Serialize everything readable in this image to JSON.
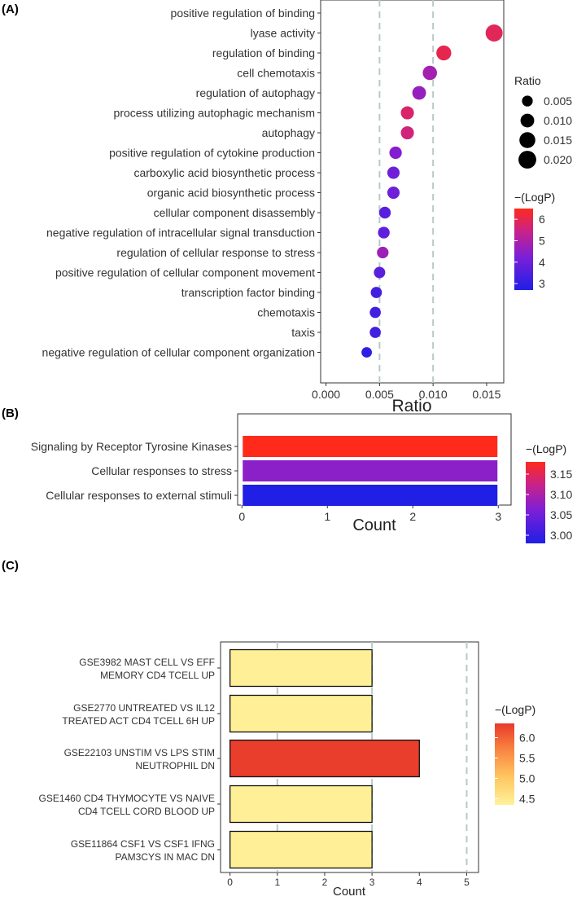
{
  "panels": {
    "a": {
      "tag": "(A)"
    },
    "b": {
      "tag": "(B)"
    },
    "c": {
      "tag": "(C)"
    }
  },
  "chart_data": [
    {
      "type": "scatter",
      "xlabel": "Ratio",
      "xlim": [
        -0.0005,
        0.0166
      ],
      "xticks": [
        "0.000",
        "0.005",
        "0.010",
        "0.015"
      ],
      "xtick_values": [
        0,
        0.005,
        0.01,
        0.015
      ],
      "reference_lines_x": [
        0.005,
        0.01
      ],
      "grid": false,
      "legend_position": "right",
      "size_legend": {
        "title": "Ratio",
        "labels": [
          "0.005",
          "0.010",
          "0.015",
          "0.020"
        ],
        "values": [
          0.005,
          0.01,
          0.015,
          0.02
        ]
      },
      "color_legend": {
        "title": "−(LogP)",
        "labels": [
          "6",
          "5",
          "4",
          "3"
        ],
        "values": [
          6,
          5,
          4,
          3
        ],
        "range": [
          2.7,
          6.5
        ],
        "colors": [
          "#1f1fe6",
          "#7b1fd8",
          "#c9228a",
          "#ff2a1a"
        ]
      },
      "categories": [
        "positive regulation of binding",
        "lyase activity",
        "regulation of binding",
        "cell chemotaxis",
        "regulation of autophagy",
        "process utilizing autophagic mechanism",
        "autophagy",
        "positive regulation of cytokine production",
        "carboxylic acid biosynthetic process",
        "organic acid biosynthetic process",
        "cellular component disassembly",
        "negative regulation of intracellular signal transduction",
        "regulation of cellular response to stress",
        "positive regulation of cellular component movement",
        "transcription factor binding",
        "chemotaxis",
        "taxis",
        "negative regulation of cellular component organization"
      ],
      "x": [
        null,
        0.0157,
        0.011,
        0.0097,
        0.0087,
        0.0076,
        0.0076,
        0.0065,
        0.0063,
        0.0063,
        0.0055,
        0.0054,
        0.0053,
        0.005,
        0.0047,
        0.0046,
        0.0046,
        0.0038
      ],
      "color_values": [
        null,
        5.8,
        5.9,
        4.6,
        4.4,
        5.6,
        5.4,
        4.1,
        3.8,
        3.8,
        3.5,
        3.6,
        4.5,
        3.5,
        3.2,
        3.2,
        3.2,
        2.9
      ]
    },
    {
      "type": "bar",
      "orientation": "horizontal",
      "xlabel": "Count",
      "xlim": [
        -0.05,
        3.15
      ],
      "xticks": [
        "0",
        "1",
        "2",
        "3"
      ],
      "grid": false,
      "legend_position": "right",
      "color_legend": {
        "title": "−(LogP)",
        "labels": [
          "3.15",
          "3.10",
          "3.05",
          "3.00"
        ],
        "values": [
          3.15,
          3.1,
          3.05,
          3.0
        ],
        "range": [
          2.98,
          3.18
        ],
        "colors": [
          "#1f1fe6",
          "#7b1fd8",
          "#c9228a",
          "#ff2a1a"
        ]
      },
      "categories": [
        "Signaling by Receptor Tyrosine Kinases",
        "Cellular responses to stress",
        "Cellular responses to external stimuli"
      ],
      "values": [
        3,
        3,
        3
      ],
      "color_values": [
        3.18,
        3.06,
        2.98
      ]
    },
    {
      "type": "bar",
      "orientation": "horizontal",
      "xlabel": "Count",
      "xlim": [
        -0.2,
        5.25
      ],
      "xticks": [
        "0",
        "1",
        "2",
        "3",
        "4",
        "5"
      ],
      "reference_lines_x": [
        1,
        3,
        5
      ],
      "grid": false,
      "legend_position": "right",
      "color_legend": {
        "title": "−(LogP)",
        "labels": [
          "6.0",
          "5.5",
          "5.0",
          "4.5"
        ],
        "values": [
          6.0,
          5.5,
          5.0,
          4.5
        ],
        "range": [
          4.35,
          6.35
        ],
        "colors": [
          "#fff29a",
          "#fec560",
          "#f88040",
          "#e8392a"
        ]
      },
      "categories": [
        [
          "GSE3982 MAST CELL VS EFF",
          "MEMORY CD4 TCELL UP"
        ],
        [
          "GSE2770 UNTREATED VS IL12",
          "TREATED ACT CD4 TCELL 6H UP"
        ],
        [
          "GSE22103 UNSTIM VS LPS STIM",
          "NEUTROPHIL DN"
        ],
        [
          "GSE1460 CD4 THYMOCYTE VS NAIVE",
          "CD4 TCELL CORD BLOOD UP"
        ],
        [
          "GSE11864 CSF1 VS CSF1 IFNG",
          "PAM3CYS IN MAC DN"
        ]
      ],
      "values": [
        3,
        3,
        4,
        3,
        3
      ],
      "color_values": [
        4.4,
        4.4,
        6.3,
        4.4,
        4.4
      ]
    }
  ]
}
